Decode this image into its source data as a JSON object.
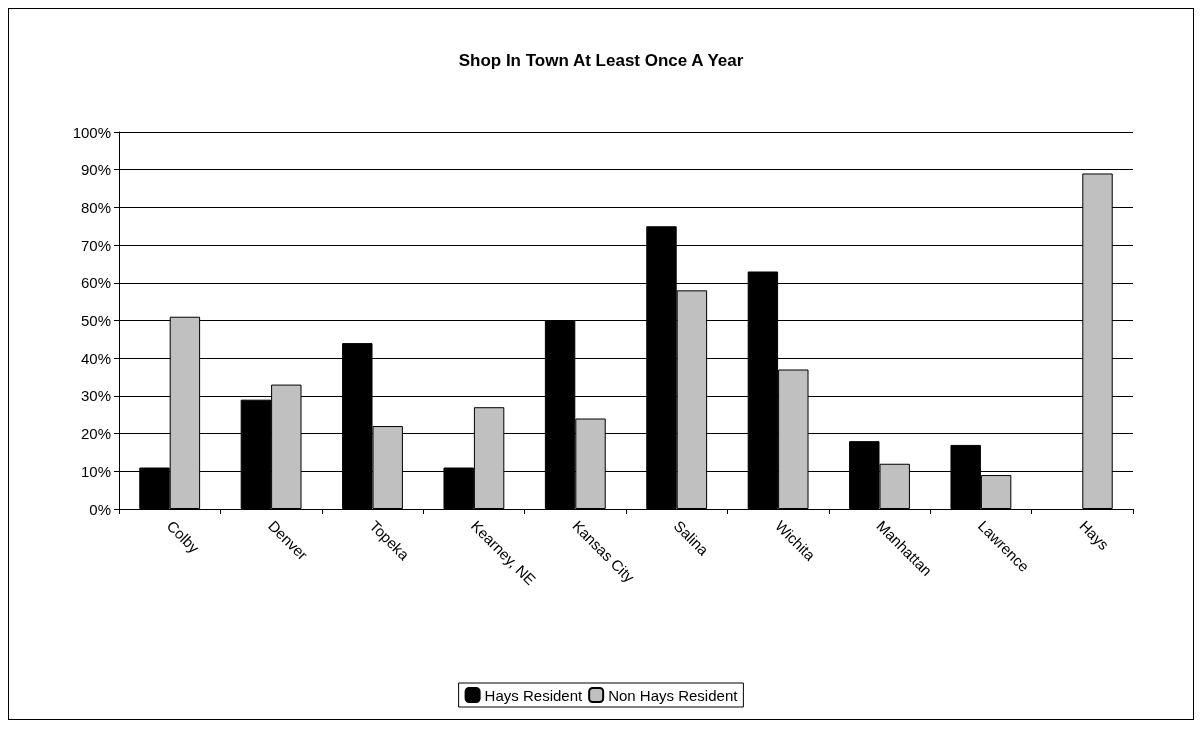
{
  "chart_data": {
    "type": "bar",
    "title": "Shop In Town At Least Once A Year",
    "categories": [
      "Colby",
      "Denver",
      "Topeka",
      "Kearney, NE",
      "Kansas City",
      "Salina",
      "Wichita",
      "Manhattan",
      "Lawrence",
      "Hays"
    ],
    "series": [
      {
        "name": "Hays Resident",
        "color": "#000000",
        "values": [
          11,
          29,
          44,
          11,
          50,
          75,
          63,
          18,
          17,
          null
        ]
      },
      {
        "name": "Non Hays Resident",
        "color": "#c0c0c0",
        "values": [
          51,
          33,
          22,
          27,
          24,
          58,
          37,
          12,
          9,
          89
        ]
      }
    ],
    "ylim": [
      0,
      100
    ],
    "yticks": [
      {
        "value": 0,
        "label": "0%"
      },
      {
        "value": 10,
        "label": "10%"
      },
      {
        "value": 20,
        "label": "20%"
      },
      {
        "value": 30,
        "label": "30%"
      },
      {
        "value": 40,
        "label": "40%"
      },
      {
        "value": 50,
        "label": "50%"
      },
      {
        "value": 60,
        "label": "60%"
      },
      {
        "value": 70,
        "label": "70%"
      },
      {
        "value": 80,
        "label": "80%"
      },
      {
        "value": 90,
        "label": "90%"
      },
      {
        "value": 100,
        "label": "100%"
      }
    ],
    "grid": "y",
    "legend": "bottom"
  }
}
